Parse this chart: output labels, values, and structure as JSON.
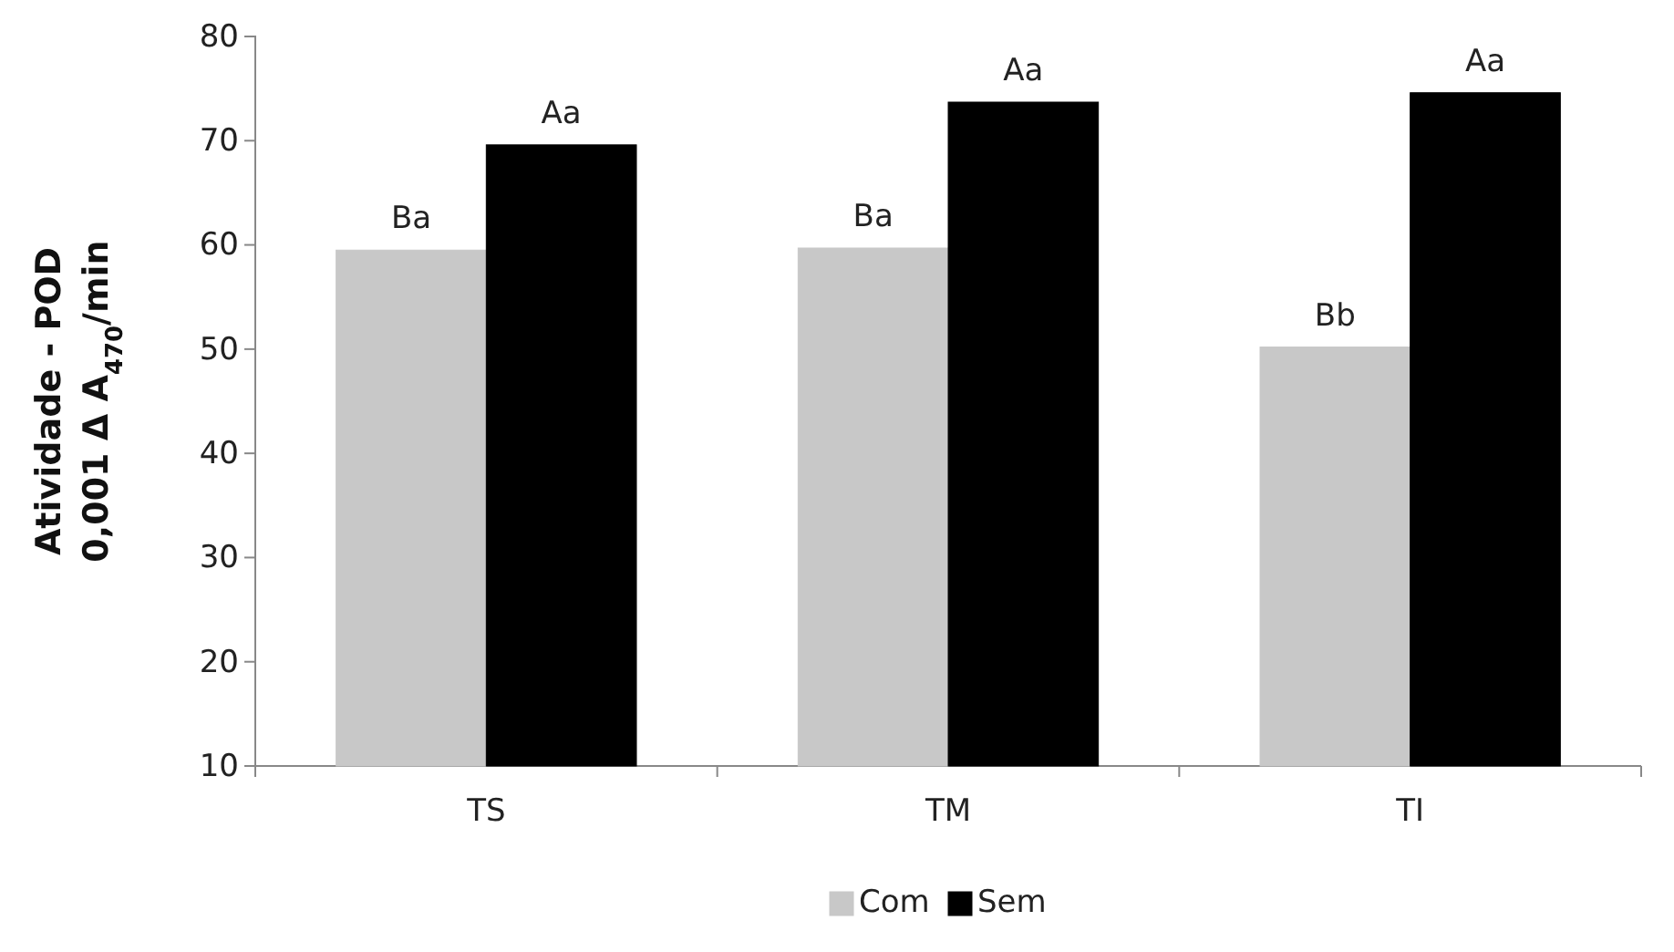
{
  "chart_data": {
    "type": "bar",
    "ylabel": "Atividade - POD\n0,001 Δ A$_{470}$/min",
    "categories": [
      "TS",
      "TM",
      "TI"
    ],
    "series": [
      {
        "name": "Com",
        "color": "#c8c8c8",
        "values": [
          59.5,
          59.7,
          50.2
        ],
        "value_labels": [
          "Ba",
          "Ba",
          "Bb"
        ]
      },
      {
        "name": "Sem",
        "color": "#000000",
        "values": [
          69.6,
          73.7,
          74.6
        ],
        "value_labels": [
          "Aa",
          "Aa",
          "Aa"
        ]
      }
    ],
    "ylim": [
      10,
      80
    ],
    "yticks": [
      10,
      20,
      30,
      40,
      50,
      60,
      70,
      80
    ],
    "grid": false,
    "legend": "bottom"
  }
}
